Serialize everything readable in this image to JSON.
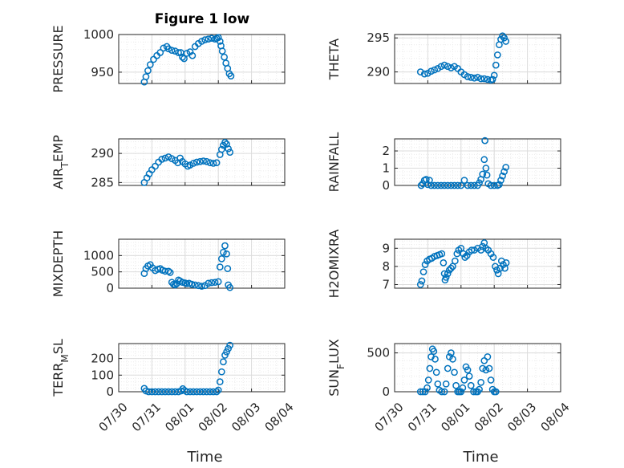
{
  "figure": {
    "title": "Figure 1 low"
  },
  "colors": {
    "marker": "#0072BD",
    "axis": "#262626",
    "grid": "#dcdcdc",
    "grid_minor": "#ececec"
  },
  "chart_data": [
    {
      "type": "scatter",
      "ylabel": "PRESSURE",
      "xlabel": "",
      "title": "Figure 1 low",
      "xlim": [
        "07/30",
        "08/04"
      ],
      "ylim": [
        935,
        1000
      ],
      "yticks": [
        950,
        1000
      ],
      "grid": true,
      "points": [
        [
          0.77,
          937
        ],
        [
          0.82,
          944
        ],
        [
          0.88,
          952
        ],
        [
          0.95,
          960
        ],
        [
          1.05,
          967
        ],
        [
          1.15,
          972
        ],
        [
          1.25,
          976
        ],
        [
          1.35,
          982
        ],
        [
          1.45,
          984
        ],
        [
          1.5,
          981
        ],
        [
          1.6,
          979
        ],
        [
          1.7,
          978
        ],
        [
          1.8,
          976
        ],
        [
          1.87,
          976
        ],
        [
          1.92,
          970
        ],
        [
          1.97,
          968
        ],
        [
          2.05,
          975
        ],
        [
          2.15,
          977
        ],
        [
          2.22,
          972
        ],
        [
          2.3,
          984
        ],
        [
          2.4,
          988
        ],
        [
          2.5,
          991
        ],
        [
          2.6,
          993
        ],
        [
          2.7,
          994
        ],
        [
          2.8,
          995
        ],
        [
          2.9,
          994
        ],
        [
          2.95,
          995
        ],
        [
          3.0,
          996
        ],
        [
          3.05,
          991
        ],
        [
          3.08,
          985
        ],
        [
          3.12,
          978
        ],
        [
          3.18,
          970
        ],
        [
          3.23,
          962
        ],
        [
          3.28,
          955
        ],
        [
          3.33,
          948
        ],
        [
          3.38,
          945
        ]
      ]
    },
    {
      "type": "scatter",
      "ylabel": "THETA",
      "xlabel": "",
      "xlim": [
        "07/30",
        "08/04"
      ],
      "ylim": [
        288.3,
        295.5
      ],
      "yticks": [
        290,
        295
      ],
      "grid": true,
      "points": [
        [
          0.78,
          290.0
        ],
        [
          0.9,
          289.7
        ],
        [
          1.0,
          289.8
        ],
        [
          1.1,
          290.1
        ],
        [
          1.2,
          290.3
        ],
        [
          1.3,
          290.5
        ],
        [
          1.4,
          290.8
        ],
        [
          1.5,
          291.0
        ],
        [
          1.6,
          290.8
        ],
        [
          1.7,
          290.6
        ],
        [
          1.8,
          290.8
        ],
        [
          1.9,
          290.5
        ],
        [
          2.0,
          290.0
        ],
        [
          2.1,
          289.6
        ],
        [
          2.2,
          289.3
        ],
        [
          2.3,
          289.2
        ],
        [
          2.4,
          289.1
        ],
        [
          2.5,
          289.2
        ],
        [
          2.6,
          289.0
        ],
        [
          2.7,
          289.0
        ],
        [
          2.8,
          288.9
        ],
        [
          2.9,
          288.8
        ],
        [
          2.95,
          288.9
        ],
        [
          3.0,
          289.5
        ],
        [
          3.05,
          291.0
        ],
        [
          3.1,
          292.5
        ],
        [
          3.15,
          294.0
        ],
        [
          3.2,
          294.8
        ],
        [
          3.25,
          295.3
        ],
        [
          3.3,
          295.0
        ],
        [
          3.35,
          294.5
        ]
      ]
    },
    {
      "type": "scatter",
      "ylabel": "AIR_TEMP",
      "xlabel": "",
      "xlim": [
        "07/30",
        "08/04"
      ],
      "ylim": [
        284.5,
        292.5
      ],
      "yticks": [
        285,
        290
      ],
      "grid": true,
      "points": [
        [
          0.77,
          285.0
        ],
        [
          0.85,
          285.8
        ],
        [
          0.92,
          286.5
        ],
        [
          1.0,
          287.2
        ],
        [
          1.1,
          287.8
        ],
        [
          1.2,
          288.5
        ],
        [
          1.3,
          289.0
        ],
        [
          1.4,
          289.2
        ],
        [
          1.5,
          289.4
        ],
        [
          1.6,
          289.1
        ],
        [
          1.7,
          288.8
        ],
        [
          1.78,
          288.4
        ],
        [
          1.85,
          289.2
        ],
        [
          1.92,
          288.6
        ],
        [
          2.0,
          288.2
        ],
        [
          2.08,
          287.8
        ],
        [
          2.15,
          288.0
        ],
        [
          2.25,
          288.3
        ],
        [
          2.35,
          288.5
        ],
        [
          2.45,
          288.6
        ],
        [
          2.55,
          288.7
        ],
        [
          2.65,
          288.6
        ],
        [
          2.75,
          288.4
        ],
        [
          2.85,
          288.3
        ],
        [
          2.95,
          288.4
        ],
        [
          3.05,
          289.8
        ],
        [
          3.1,
          290.7
        ],
        [
          3.15,
          291.4
        ],
        [
          3.2,
          291.9
        ],
        [
          3.25,
          291.6
        ],
        [
          3.3,
          290.8
        ],
        [
          3.35,
          290.2
        ]
      ]
    },
    {
      "type": "scatter",
      "ylabel": "RAINFALL",
      "xlabel": "",
      "xlim": [
        "07/30",
        "08/04"
      ],
      "ylim": [
        0,
        2.7
      ],
      "yticks": [
        0,
        1,
        2
      ],
      "grid": true,
      "points": [
        [
          0.8,
          0.0
        ],
        [
          0.85,
          0.1
        ],
        [
          0.9,
          0.3
        ],
        [
          0.95,
          0.35
        ],
        [
          1.0,
          0.05
        ],
        [
          1.05,
          0.3
        ],
        [
          1.1,
          0.0
        ],
        [
          1.2,
          0.0
        ],
        [
          1.3,
          0.0
        ],
        [
          1.4,
          0.0
        ],
        [
          1.5,
          0.0
        ],
        [
          1.6,
          0.0
        ],
        [
          1.7,
          0.0
        ],
        [
          1.8,
          0.0
        ],
        [
          1.9,
          0.0
        ],
        [
          2.0,
          0.0
        ],
        [
          2.1,
          0.3
        ],
        [
          2.2,
          0.0
        ],
        [
          2.3,
          0.0
        ],
        [
          2.4,
          0.0
        ],
        [
          2.5,
          0.0
        ],
        [
          2.55,
          0.15
        ],
        [
          2.6,
          0.35
        ],
        [
          2.65,
          0.65
        ],
        [
          2.7,
          1.5
        ],
        [
          2.72,
          2.6
        ],
        [
          2.75,
          1.0
        ],
        [
          2.78,
          0.6
        ],
        [
          2.82,
          0.1
        ],
        [
          2.9,
          0.0
        ],
        [
          3.0,
          0.0
        ],
        [
          3.1,
          0.0
        ],
        [
          3.15,
          0.05
        ],
        [
          3.2,
          0.3
        ],
        [
          3.25,
          0.55
        ],
        [
          3.3,
          0.8
        ],
        [
          3.35,
          1.05
        ]
      ]
    },
    {
      "type": "scatter",
      "ylabel": "MIXDEPTH",
      "xlabel": "",
      "xlim": [
        "07/30",
        "08/04"
      ],
      "ylim": [
        0,
        1500
      ],
      "yticks": [
        0,
        500,
        1000
      ],
      "grid": true,
      "points": [
        [
          0.77,
          450
        ],
        [
          0.82,
          600
        ],
        [
          0.88,
          680
        ],
        [
          0.95,
          720
        ],
        [
          1.02,
          620
        ],
        [
          1.1,
          540
        ],
        [
          1.18,
          580
        ],
        [
          1.25,
          600
        ],
        [
          1.32,
          550
        ],
        [
          1.4,
          520
        ],
        [
          1.5,
          520
        ],
        [
          1.55,
          480
        ],
        [
          1.6,
          180
        ],
        [
          1.65,
          120
        ],
        [
          1.7,
          100
        ],
        [
          1.75,
          140
        ],
        [
          1.8,
          250
        ],
        [
          1.85,
          220
        ],
        [
          1.92,
          180
        ],
        [
          2.0,
          160
        ],
        [
          2.05,
          140
        ],
        [
          2.12,
          150
        ],
        [
          2.2,
          120
        ],
        [
          2.3,
          100
        ],
        [
          2.4,
          80
        ],
        [
          2.5,
          60
        ],
        [
          2.6,
          80
        ],
        [
          2.7,
          150
        ],
        [
          2.8,
          170
        ],
        [
          2.9,
          180
        ],
        [
          3.0,
          200
        ],
        [
          3.05,
          650
        ],
        [
          3.1,
          900
        ],
        [
          3.15,
          1100
        ],
        [
          3.2,
          1300
        ],
        [
          3.25,
          1050
        ],
        [
          3.28,
          600
        ],
        [
          3.3,
          100
        ],
        [
          3.35,
          20
        ]
      ]
    },
    {
      "type": "scatter",
      "ylabel": "H2OMIXRA",
      "xlabel": "",
      "xlim": [
        "07/30",
        "08/04"
      ],
      "ylim": [
        6.8,
        9.5
      ],
      "yticks": [
        7,
        8,
        9
      ],
      "grid": true,
      "points": [
        [
          0.78,
          7.0
        ],
        [
          0.82,
          7.2
        ],
        [
          0.87,
          7.7
        ],
        [
          0.92,
          8.1
        ],
        [
          0.98,
          8.3
        ],
        [
          1.05,
          8.4
        ],
        [
          1.12,
          8.45
        ],
        [
          1.2,
          8.55
        ],
        [
          1.28,
          8.6
        ],
        [
          1.35,
          8.65
        ],
        [
          1.42,
          8.7
        ],
        [
          1.47,
          8.2
        ],
        [
          1.5,
          7.6
        ],
        [
          1.52,
          7.25
        ],
        [
          1.55,
          7.4
        ],
        [
          1.6,
          7.6
        ],
        [
          1.65,
          7.8
        ],
        [
          1.7,
          7.9
        ],
        [
          1.75,
          8.0
        ],
        [
          1.82,
          8.3
        ],
        [
          1.88,
          8.7
        ],
        [
          1.93,
          8.9
        ],
        [
          2.0,
          9.0
        ],
        [
          2.07,
          8.7
        ],
        [
          2.12,
          8.5
        ],
        [
          2.18,
          8.6
        ],
        [
          2.25,
          8.8
        ],
        [
          2.32,
          8.9
        ],
        [
          2.4,
          8.9
        ],
        [
          2.5,
          9.0
        ],
        [
          2.6,
          8.9
        ],
        [
          2.65,
          9.1
        ],
        [
          2.7,
          9.3
        ],
        [
          2.75,
          9.0
        ],
        [
          2.82,
          8.9
        ],
        [
          2.9,
          8.7
        ],
        [
          2.97,
          8.5
        ],
        [
          3.03,
          8.0
        ],
        [
          3.08,
          7.8
        ],
        [
          3.12,
          7.6
        ],
        [
          3.18,
          7.9
        ],
        [
          3.22,
          8.3
        ],
        [
          3.27,
          8.1
        ],
        [
          3.32,
          7.9
        ],
        [
          3.36,
          8.2
        ]
      ]
    },
    {
      "type": "scatter",
      "ylabel": "TERR_MSL",
      "xlabel": "Time",
      "xlim": [
        "07/30",
        "08/04"
      ],
      "ylim": [
        0,
        290
      ],
      "yticks": [
        0,
        100,
        200
      ],
      "grid": true,
      "xticklabels": [
        "07/30",
        "07/31",
        "08/01",
        "08/02",
        "08/03",
        "08/04"
      ],
      "points": [
        [
          0.77,
          20
        ],
        [
          0.82,
          5
        ],
        [
          0.9,
          0
        ],
        [
          1.0,
          0
        ],
        [
          1.1,
          0
        ],
        [
          1.2,
          0
        ],
        [
          1.3,
          0
        ],
        [
          1.4,
          0
        ],
        [
          1.5,
          0
        ],
        [
          1.6,
          0
        ],
        [
          1.7,
          0
        ],
        [
          1.8,
          0
        ],
        [
          1.88,
          5
        ],
        [
          1.93,
          18
        ],
        [
          1.98,
          8
        ],
        [
          2.05,
          0
        ],
        [
          2.15,
          0
        ],
        [
          2.25,
          0
        ],
        [
          2.35,
          0
        ],
        [
          2.45,
          0
        ],
        [
          2.55,
          0
        ],
        [
          2.65,
          0
        ],
        [
          2.75,
          0
        ],
        [
          2.85,
          0
        ],
        [
          2.95,
          0
        ],
        [
          3.0,
          10
        ],
        [
          3.05,
          60
        ],
        [
          3.1,
          120
        ],
        [
          3.15,
          180
        ],
        [
          3.2,
          220
        ],
        [
          3.25,
          240
        ],
        [
          3.3,
          260
        ],
        [
          3.35,
          280
        ]
      ]
    },
    {
      "type": "scatter",
      "ylabel": "SUN_FLUX",
      "xlabel": "Time",
      "xlim": [
        "07/30",
        "08/04"
      ],
      "ylim": [
        0,
        620
      ],
      "yticks": [
        0,
        500
      ],
      "grid": true,
      "xticklabels": [
        "07/30",
        "07/31",
        "08/01",
        "08/02",
        "08/03",
        "08/04"
      ],
      "points": [
        [
          0.78,
          0
        ],
        [
          0.85,
          0
        ],
        [
          0.92,
          0
        ],
        [
          0.98,
          50
        ],
        [
          1.02,
          150
        ],
        [
          1.06,
          300
        ],
        [
          1.1,
          450
        ],
        [
          1.14,
          550
        ],
        [
          1.18,
          520
        ],
        [
          1.22,
          420
        ],
        [
          1.26,
          250
        ],
        [
          1.3,
          100
        ],
        [
          1.35,
          20
        ],
        [
          1.42,
          0
        ],
        [
          1.5,
          0
        ],
        [
          1.55,
          100
        ],
        [
          1.6,
          300
        ],
        [
          1.65,
          450
        ],
        [
          1.7,
          500
        ],
        [
          1.75,
          420
        ],
        [
          1.8,
          250
        ],
        [
          1.85,
          80
        ],
        [
          1.9,
          0
        ],
        [
          1.95,
          0
        ],
        [
          2.0,
          0
        ],
        [
          2.05,
          50
        ],
        [
          2.1,
          150
        ],
        [
          2.15,
          320
        ],
        [
          2.2,
          280
        ],
        [
          2.25,
          200
        ],
        [
          2.3,
          80
        ],
        [
          2.38,
          0
        ],
        [
          2.45,
          0
        ],
        [
          2.5,
          0
        ],
        [
          2.55,
          30
        ],
        [
          2.6,
          120
        ],
        [
          2.65,
          300
        ],
        [
          2.7,
          400
        ],
        [
          2.75,
          280
        ],
        [
          2.8,
          450
        ],
        [
          2.85,
          300
        ],
        [
          2.9,
          150
        ],
        [
          2.95,
          30
        ],
        [
          3.0,
          0
        ],
        [
          3.05,
          0
        ]
      ]
    }
  ]
}
